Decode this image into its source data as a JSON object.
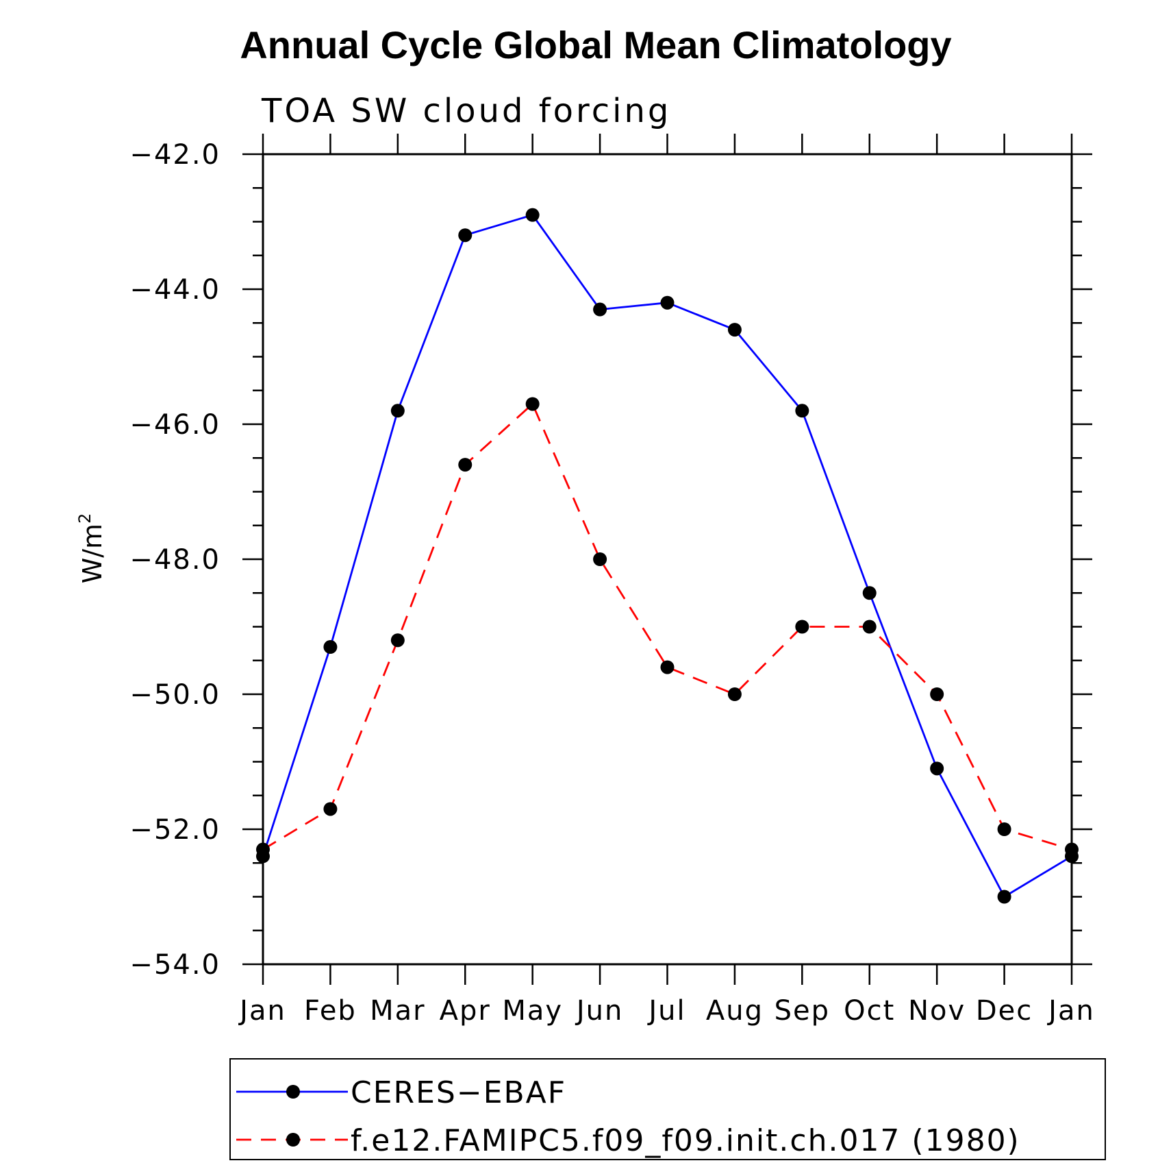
{
  "chart_data": {
    "type": "line",
    "title": "Annual Cycle Global Mean Climatology",
    "subtitle": "TOA SW cloud forcing",
    "ylabel": "W/m",
    "ylabel_sup": "2",
    "ylim": [
      -54.0,
      -42.0
    ],
    "yticks": [
      "-42.0",
      "-44.0",
      "-46.0",
      "-48.0",
      "-50.0",
      "-52.0",
      "-54.0"
    ],
    "categories": [
      "Jan",
      "Feb",
      "Mar",
      "Apr",
      "May",
      "Jun",
      "Jul",
      "Aug",
      "Sep",
      "Oct",
      "Nov",
      "Dec",
      "Jan"
    ],
    "grid": false,
    "legend_position": "bottom",
    "series": [
      {
        "name": "CERES-EBAF",
        "color": "#0000ff",
        "style": "solid",
        "values": [
          -52.4,
          -49.3,
          -45.8,
          -43.2,
          -42.9,
          -44.3,
          -44.2,
          -44.6,
          -45.8,
          -48.5,
          -51.1,
          -53.0,
          -52.4
        ]
      },
      {
        "name": "f.e12.FAMIPC5.f09_f09.init.ch.017 (1980)",
        "color": "#ff0000",
        "style": "dashed",
        "values": [
          -52.3,
          -51.7,
          -49.2,
          -46.6,
          -45.7,
          -48.0,
          -49.6,
          -50.0,
          -49.0,
          -49.0,
          -50.0,
          -52.0,
          -52.3
        ]
      }
    ]
  }
}
